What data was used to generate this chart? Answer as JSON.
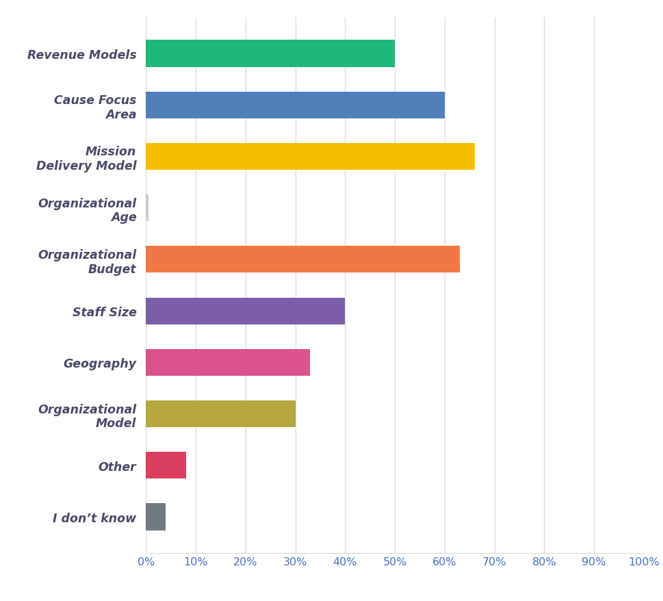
{
  "categories": [
    "Revenue Models",
    "Cause Focus\nArea",
    "Mission\nDelivery Model",
    "Organizational\nAge",
    "Organizational\nBudget",
    "Staff Size",
    "Geography",
    "Organizational\nModel",
    "Other",
    "I don’t know"
  ],
  "values": [
    50,
    60,
    66,
    0.5,
    63,
    40,
    33,
    30,
    8,
    4
  ],
  "colors": [
    "#1db87a",
    "#5080b8",
    "#f5c000",
    "#cccccc",
    "#f07845",
    "#7b5ea7",
    "#d9538d",
    "#b5a840",
    "#d94060",
    "#6e7b80"
  ],
  "xlim": [
    0,
    100
  ],
  "xticks": [
    0,
    10,
    20,
    30,
    40,
    50,
    60,
    70,
    80,
    90,
    100
  ],
  "background_color": "#ffffff",
  "grid_color": "#d8d8d8",
  "label_color": "#4a4a6a",
  "tick_label_color": "#4472c4",
  "bar_height": 0.52,
  "figsize": [
    9.7,
    8.79
  ],
  "dpi": 100,
  "label_fontsize": 12.5,
  "tick_fontsize": 11.5
}
